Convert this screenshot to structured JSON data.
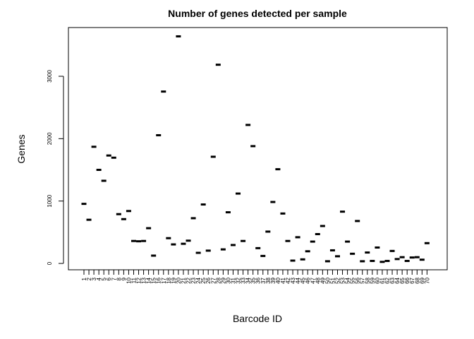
{
  "chart_data": {
    "type": "scatter",
    "title": "Number of genes detected per sample",
    "xlabel": "Barcode ID",
    "ylabel": "Genes",
    "ylim": [
      0,
      3700
    ],
    "yticks": [
      0,
      1000,
      2000,
      3000
    ],
    "grid": false,
    "legend": "none",
    "marker": "horizontal-dash",
    "categories": [
      "1",
      "2",
      "3",
      "4",
      "5",
      "6",
      "7",
      "8",
      "9",
      "10",
      "11",
      "12",
      "13",
      "14",
      "15",
      "16",
      "17",
      "18",
      "19",
      "20",
      "21",
      "22",
      "23",
      "24",
      "25",
      "26",
      "27",
      "28",
      "29",
      "30",
      "31",
      "32",
      "33",
      "34",
      "35",
      "36",
      "37",
      "38",
      "39",
      "40",
      "41",
      "42",
      "43",
      "44",
      "45",
      "46",
      "47",
      "48",
      "49",
      "50",
      "51",
      "52",
      "53",
      "54",
      "55",
      "56",
      "57",
      "58",
      "59",
      "60",
      "61",
      "62",
      "63",
      "64",
      "65",
      "66",
      "67",
      "68",
      "69",
      "70"
    ],
    "values": [
      955,
      700,
      1870,
      1500,
      1325,
      1730,
      1695,
      790,
      710,
      840,
      360,
      355,
      360,
      565,
      125,
      2055,
      2755,
      405,
      305,
      3640,
      315,
      365,
      725,
      170,
      945,
      205,
      1710,
      3185,
      225,
      820,
      295,
      1120,
      360,
      2220,
      1880,
      245,
      120,
      510,
      985,
      1510,
      800,
      360,
      45,
      420,
      65,
      195,
      350,
      470,
      600,
      35,
      210,
      115,
      830,
      350,
      155,
      680,
      35,
      175,
      40,
      255,
      25,
      40,
      200,
      70,
      100,
      40,
      95,
      100,
      60,
      325
    ],
    "colors": {
      "marks": "#000000",
      "axes": "#000000",
      "background": "#ffffff"
    }
  }
}
